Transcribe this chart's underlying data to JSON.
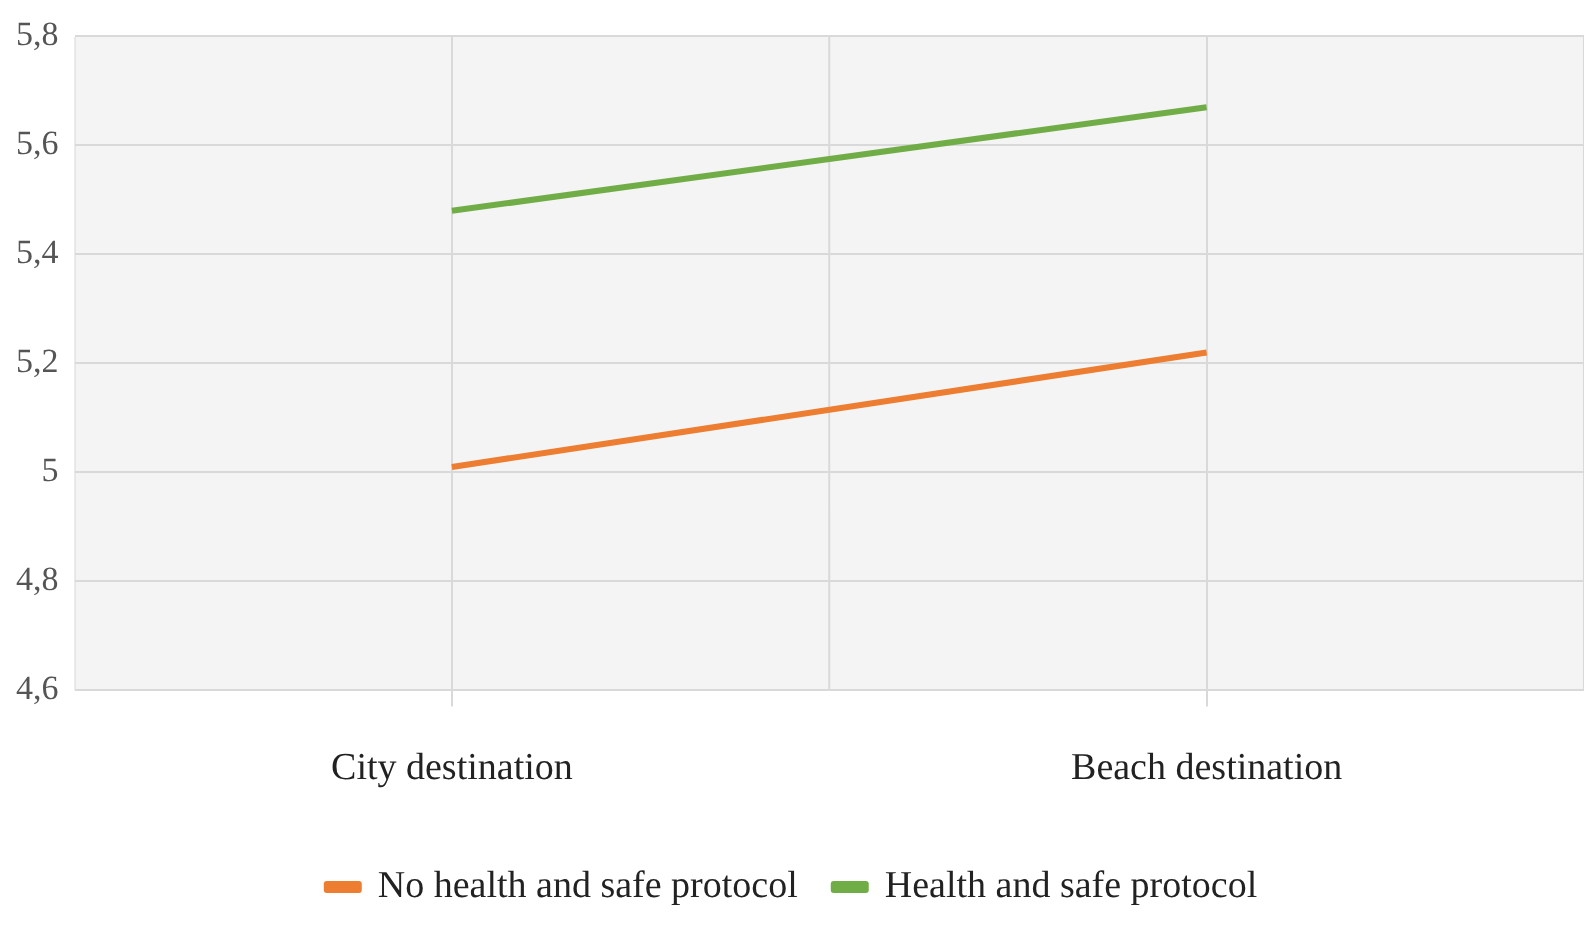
{
  "chart_data": {
    "type": "line",
    "categories": [
      "City destination",
      "Beach destination"
    ],
    "series": [
      {
        "name": "No health and safe protocol",
        "color": "#ed7d31",
        "values": [
          5.01,
          5.22
        ]
      },
      {
        "name": "Health and safe protocol",
        "color": "#70ad47",
        "values": [
          5.48,
          5.67
        ]
      }
    ],
    "ylim": [
      4.6,
      5.8
    ],
    "yticks": [
      {
        "value": 4.6,
        "label": "4,6"
      },
      {
        "value": 4.8,
        "label": "4,8"
      },
      {
        "value": 5,
        "label": "5"
      },
      {
        "value": 5.2,
        "label": "5,2"
      },
      {
        "value": 5.4,
        "label": "5,4"
      },
      {
        "value": 5.6,
        "label": "5,6"
      },
      {
        "value": 5.8,
        "label": "5,8"
      }
    ],
    "grid": true,
    "legend": "bottom",
    "marker": "none",
    "line_style": "solid"
  }
}
